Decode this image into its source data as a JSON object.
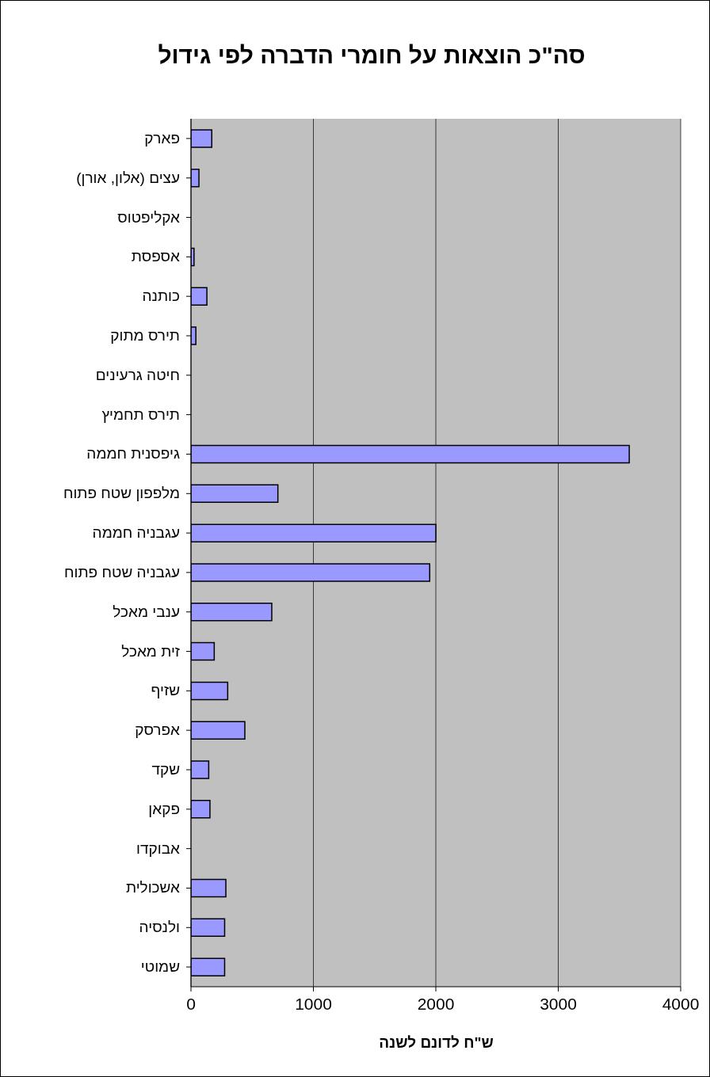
{
  "chart_data": {
    "type": "bar",
    "orientation": "horizontal",
    "title": "סה\"כ הוצאות על חומרי הדברה לפי גידול",
    "xlabel": "ש\"ח לדונם לשנה",
    "categories": [
      "פארק",
      "עצים (אלון, אורן)",
      "אקליפטוס",
      "אספסת",
      "כותנה",
      "תירס מתוק",
      "חיטה גרעינים",
      "תירס תחמיץ",
      "גיפסנית חממה",
      "מלפפון שטח פתוח",
      "עגבניה חממה",
      "עגבניה שטח פתוח",
      "ענבי מאכל",
      "זית מאכל",
      "שזיף",
      "אפרסק",
      "שקד",
      "פקאן",
      "אבוקדו",
      "אשכולית",
      "ולנסיה",
      "שמוטי"
    ],
    "values": [
      170,
      65,
      0,
      25,
      130,
      40,
      0,
      0,
      3580,
      710,
      2000,
      1950,
      660,
      190,
      300,
      440,
      145,
      155,
      0,
      285,
      275,
      275
    ],
    "color": "#9999ff",
    "xlim": [
      0,
      4000
    ],
    "xticks": [
      0,
      1000,
      2000,
      3000,
      4000
    ],
    "grid": "x"
  }
}
